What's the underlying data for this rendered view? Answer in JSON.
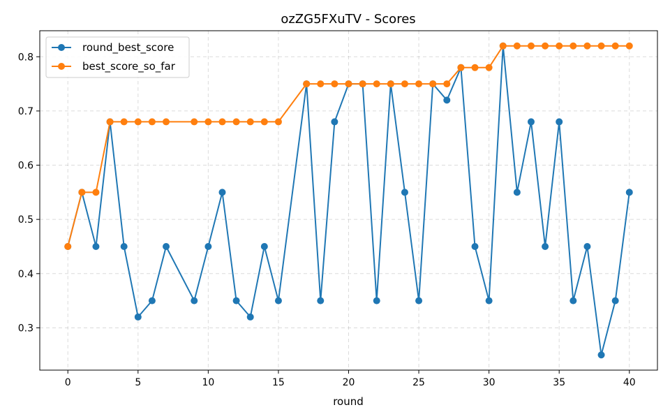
{
  "chart_data": {
    "type": "line",
    "title": "ozZG5FXuTV - Scores",
    "xlabel": "round",
    "ylabel": "",
    "xlim": [
      -2,
      42
    ],
    "ylim": [
      0.222,
      0.848
    ],
    "xticks": [
      0,
      5,
      10,
      15,
      20,
      25,
      30,
      35,
      40
    ],
    "yticks": [
      0.3,
      0.4,
      0.5,
      0.6,
      0.7,
      0.8
    ],
    "xtick_labels": [
      "0",
      "5",
      "10",
      "15",
      "20",
      "25",
      "30",
      "35",
      "40"
    ],
    "ytick_labels": [
      "0.3",
      "0.4",
      "0.5",
      "0.6",
      "0.7",
      "0.8"
    ],
    "grid": true,
    "legend_position": "top-left",
    "series": [
      {
        "name": "round_best_score",
        "color": "#1f77b4",
        "x": [
          0,
          1,
          2,
          3,
          4,
          5,
          6,
          7,
          9,
          10,
          11,
          12,
          13,
          14,
          15,
          17,
          18,
          19,
          20,
          21,
          22,
          23,
          24,
          25,
          26,
          27,
          28,
          29,
          30,
          31,
          32,
          33,
          34,
          35,
          36,
          37,
          38,
          39,
          40
        ],
        "y": [
          0.45,
          0.55,
          0.45,
          0.68,
          0.45,
          0.32,
          0.35,
          0.45,
          0.35,
          0.45,
          0.55,
          0.35,
          0.32,
          0.45,
          0.35,
          0.75,
          0.35,
          0.68,
          0.75,
          0.75,
          0.35,
          0.75,
          0.55,
          0.35,
          0.75,
          0.72,
          0.78,
          0.45,
          0.35,
          0.82,
          0.55,
          0.68,
          0.45,
          0.68,
          0.35,
          0.45,
          0.25,
          0.35,
          0.55
        ]
      },
      {
        "name": "best_score_so_far",
        "color": "#ff7f0e",
        "x": [
          0,
          1,
          2,
          3,
          4,
          5,
          6,
          7,
          9,
          10,
          11,
          12,
          13,
          14,
          15,
          17,
          18,
          19,
          20,
          21,
          22,
          23,
          24,
          25,
          26,
          27,
          28,
          29,
          30,
          31,
          32,
          33,
          34,
          35,
          36,
          37,
          38,
          39,
          40
        ],
        "y": [
          0.45,
          0.55,
          0.55,
          0.68,
          0.68,
          0.68,
          0.68,
          0.68,
          0.68,
          0.68,
          0.68,
          0.68,
          0.68,
          0.68,
          0.68,
          0.75,
          0.75,
          0.75,
          0.75,
          0.75,
          0.75,
          0.75,
          0.75,
          0.75,
          0.75,
          0.75,
          0.78,
          0.78,
          0.78,
          0.82,
          0.82,
          0.82,
          0.82,
          0.82,
          0.82,
          0.82,
          0.82,
          0.82,
          0.82
        ]
      }
    ]
  }
}
